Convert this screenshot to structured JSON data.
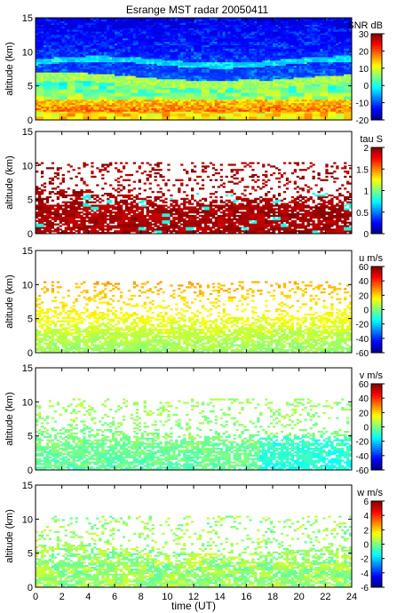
{
  "title": "Esrange MST radar 20050411",
  "xlabel": "time (UT)",
  "x_ticks": [
    "0",
    "2",
    "4",
    "6",
    "8",
    "10",
    "12",
    "14",
    "16",
    "18",
    "20",
    "22",
    "24"
  ],
  "chart_data": [
    {
      "type": "heatmap",
      "title": "Esrange MST radar 20050411",
      "xlabel": "",
      "ylabel": "altitude (km)",
      "xlim": [
        0,
        24
      ],
      "ylim": [
        0,
        15
      ],
      "y_ticks": [
        "0",
        "5",
        "10",
        "15"
      ],
      "colorbar": {
        "label": "SNR dB",
        "range": [
          -20,
          30
        ],
        "ticks": [
          "30",
          "20",
          "10",
          "0",
          "-10",
          "-20"
        ]
      },
      "description_values": {
        "low_altitude_peak_snr_db": 20,
        "upper_altitude_snr_db": -15
      }
    },
    {
      "type": "heatmap",
      "title": "",
      "xlabel": "",
      "ylabel": "altitude (km)",
      "xlim": [
        0,
        24
      ],
      "ylim": [
        0,
        15
      ],
      "y_ticks": [
        "0",
        "5",
        "10",
        "15"
      ],
      "colorbar": {
        "label": "tau S",
        "range": [
          0,
          2
        ],
        "ticks": [
          "2",
          "1.5",
          "1",
          "0.5",
          "0"
        ]
      }
    },
    {
      "type": "heatmap",
      "title": "",
      "xlabel": "",
      "ylabel": "altitude (km)",
      "xlim": [
        0,
        24
      ],
      "ylim": [
        0,
        15
      ],
      "y_ticks": [
        "0",
        "5",
        "10",
        "15"
      ],
      "colorbar": {
        "label": "u m/s",
        "range": [
          -60,
          60
        ],
        "ticks": [
          "60",
          "40",
          "20",
          "0",
          "-20",
          "-40",
          "-60"
        ]
      }
    },
    {
      "type": "heatmap",
      "title": "",
      "xlabel": "",
      "ylabel": "altitude (km)",
      "xlim": [
        0,
        24
      ],
      "ylim": [
        0,
        15
      ],
      "y_ticks": [
        "0",
        "5",
        "10",
        "15"
      ],
      "colorbar": {
        "label": "v m/s",
        "range": [
          -60,
          60
        ],
        "ticks": [
          "60",
          "40",
          "20",
          "0",
          "-20",
          "-40",
          "-60"
        ]
      }
    },
    {
      "type": "heatmap",
      "title": "",
      "xlabel": "time (UT)",
      "ylabel": "altitude (km)",
      "xlim": [
        0,
        24
      ],
      "ylim": [
        0,
        15
      ],
      "y_ticks": [
        "0",
        "5",
        "10",
        "15"
      ],
      "colorbar": {
        "label": "w m/s",
        "range": [
          -6,
          6
        ],
        "ticks": [
          "6",
          "4",
          "2",
          "0",
          "-2",
          "-4",
          "-6"
        ]
      }
    }
  ]
}
